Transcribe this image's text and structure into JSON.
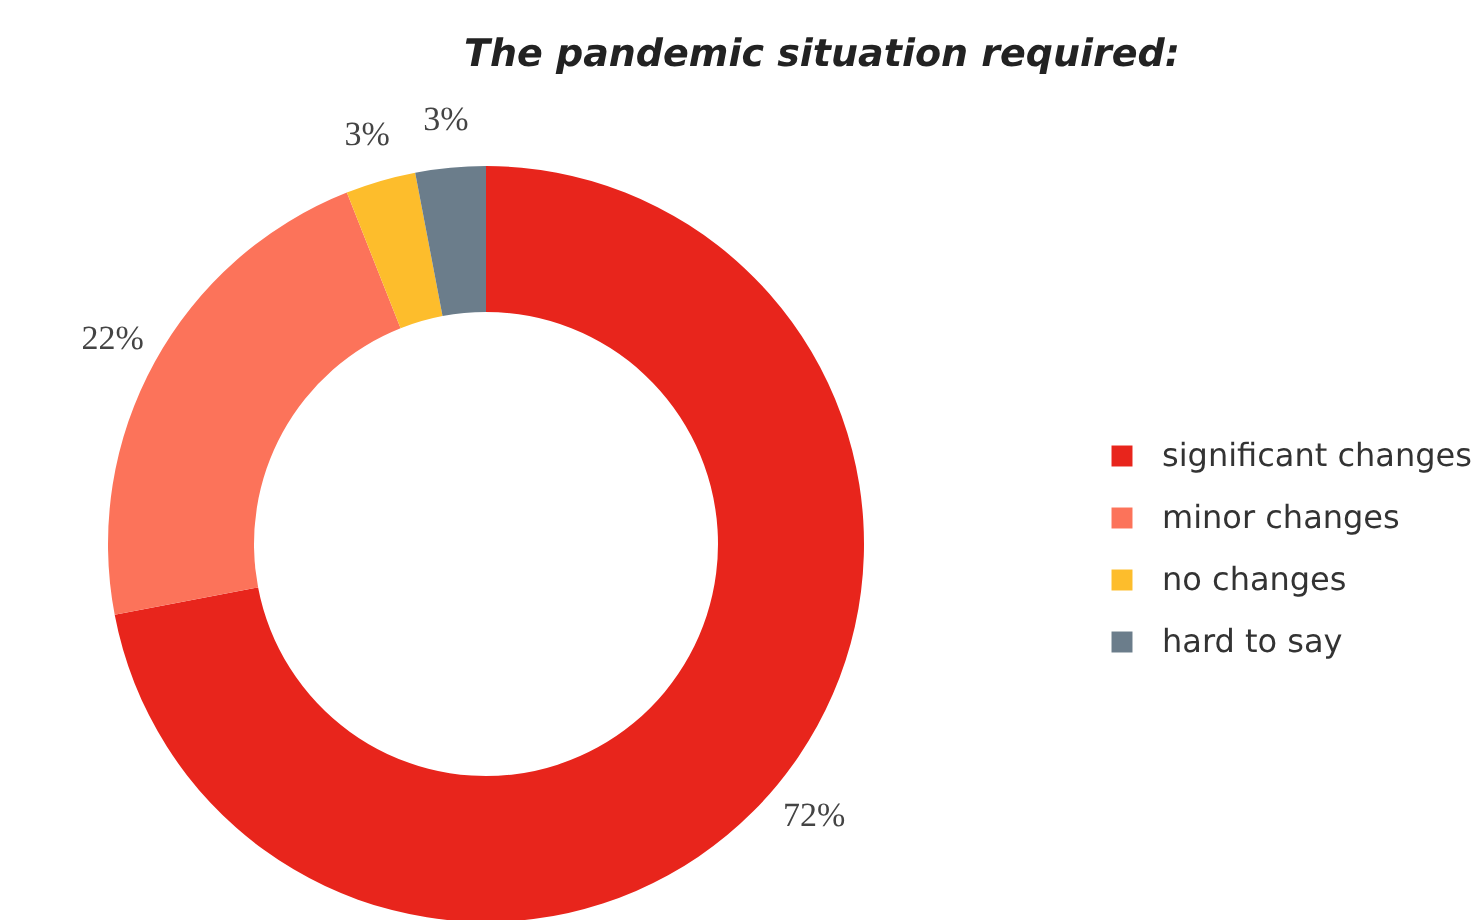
{
  "chart_data": {
    "type": "donut",
    "title": "The pandemic situation required:",
    "categories": [
      "significant changes",
      "minor changes",
      "no changes",
      "hard to say"
    ],
    "values": [
      72,
      22,
      3,
      3
    ],
    "colors": [
      "#e8251c",
      "#fc735a",
      "#fdbd2c",
      "#6b7d8b"
    ],
    "value_labels": [
      "72%",
      "22%",
      "3%",
      "3%"
    ],
    "legend": "right"
  }
}
